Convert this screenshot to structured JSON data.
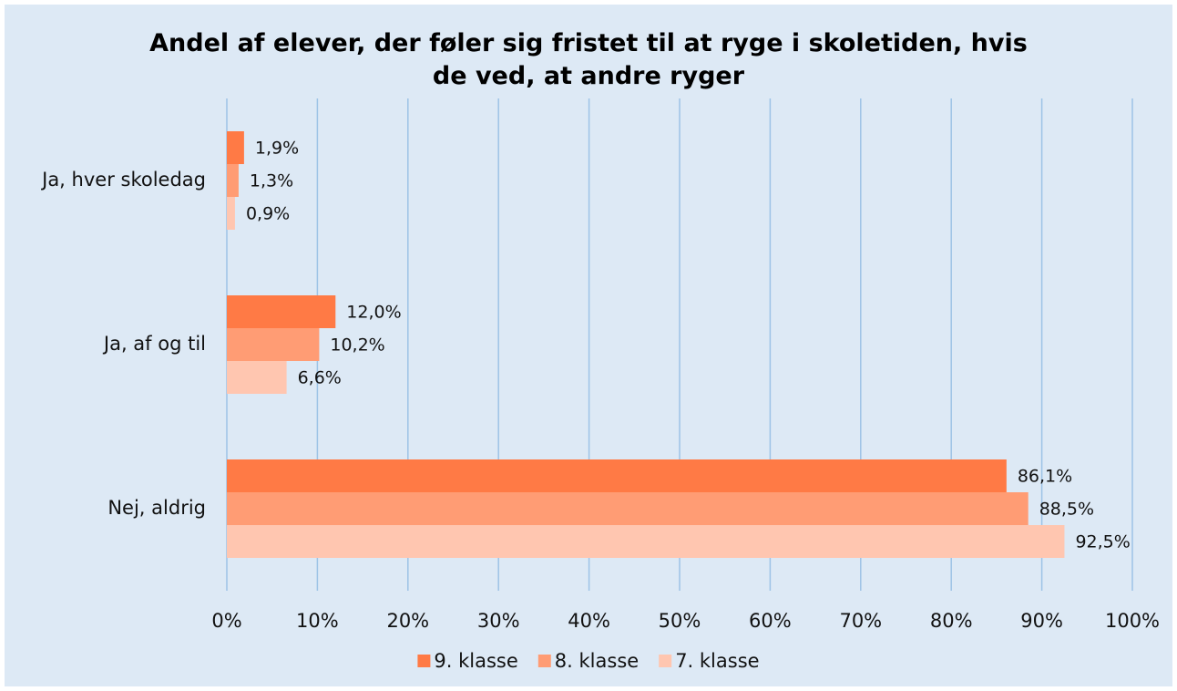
{
  "chart_data": {
    "type": "hbar",
    "title": "Andel af elever, der føler sig fristet til at ryge i skoletiden, hvis de ved, at andre ryger",
    "categories": [
      "Ja, hver skoledag",
      "Ja, af og til",
      "Nej, aldrig"
    ],
    "series": [
      {
        "name": "9. klasse",
        "color": "#ff7a45",
        "values": [
          1.9,
          12.0,
          86.1
        ],
        "value_labels": [
          "1,9%",
          "12,0%",
          "86,1%"
        ]
      },
      {
        "name": "8. klasse",
        "color": "#ff9c74",
        "values": [
          1.3,
          10.2,
          88.5
        ],
        "value_labels": [
          "1,3%",
          "10,2%",
          "88,5%"
        ]
      },
      {
        "name": "7. klasse",
        "color": "#ffc6b0",
        "values": [
          0.9,
          6.6,
          92.5
        ],
        "value_labels": [
          "0,9%",
          "6,6%",
          "92,5%"
        ]
      }
    ],
    "xlim": [
      0,
      100
    ],
    "xticks": [
      {
        "value": 0,
        "label": "0%"
      },
      {
        "value": 10,
        "label": "10%"
      },
      {
        "value": 20,
        "label": "20%"
      },
      {
        "value": 30,
        "label": "30%"
      },
      {
        "value": 40,
        "label": "40%"
      },
      {
        "value": 50,
        "label": "50%"
      },
      {
        "value": 60,
        "label": "60%"
      },
      {
        "value": 70,
        "label": "70%"
      },
      {
        "value": 80,
        "label": "80%"
      },
      {
        "value": 90,
        "label": "90%"
      },
      {
        "value": 100,
        "label": "100%"
      }
    ],
    "grid": true,
    "legend": "bottom"
  }
}
